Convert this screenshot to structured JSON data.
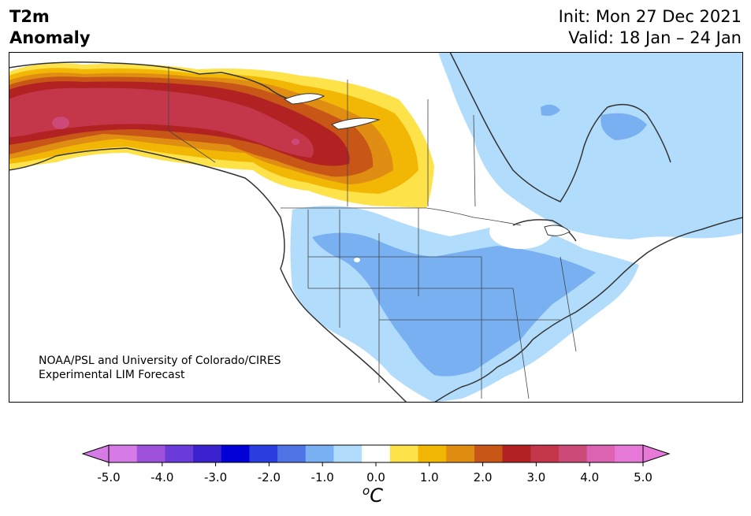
{
  "header": {
    "title_line1": "T2m",
    "title_line2": "Anomaly",
    "init": "Init: Mon 27 Dec 2021",
    "valid": "Valid: 18 Jan – 24 Jan"
  },
  "credit": {
    "line1": "NOAA/PSL and University of Colorado/CIRES",
    "line2": "Experimental LIM Forecast"
  },
  "colorbar": {
    "unit": "C",
    "unit_superscript": "o",
    "tick_labels": [
      "-5.0",
      "-4.0",
      "-3.0",
      "-2.0",
      "-1.0",
      "0.0",
      "1.0",
      "2.0",
      "3.0",
      "4.0",
      "5.0"
    ],
    "levels": [
      -5.0,
      -4.5,
      -4.0,
      -3.5,
      -3.0,
      -2.5,
      -2.0,
      -1.5,
      -1.0,
      -0.5,
      0.5,
      1.0,
      1.5,
      2.0,
      2.5,
      3.0,
      3.5,
      4.0,
      4.5,
      5.0
    ],
    "colors": [
      "#d67ae6",
      "#9e52dc",
      "#6a3bd9",
      "#3a22cf",
      "#0000d6",
      "#2a3ee0",
      "#4f74e6",
      "#78b0f2",
      "#b2dcfb",
      "#ffffff",
      "#fde24a",
      "#f2b705",
      "#e08d14",
      "#c85617",
      "#b22222",
      "#c4364a",
      "#cc4a78",
      "#dc62b2",
      "#e77ad8"
    ],
    "under_color": "#d67ae6",
    "over_color": "#e77ad8"
  },
  "map": {
    "variable": "2m temperature anomaly",
    "region": "North America",
    "anomaly_regions": [
      {
        "area": "Alaska / Yukon / western Canada",
        "range_c": [
          1.0,
          4.5
        ]
      },
      {
        "area": "Central & southern United States",
        "range_c": [
          -2.0,
          -0.5
        ]
      },
      {
        "area": "Eastern & northern Canada",
        "range_c": [
          -1.5,
          -0.5
        ]
      }
    ]
  }
}
